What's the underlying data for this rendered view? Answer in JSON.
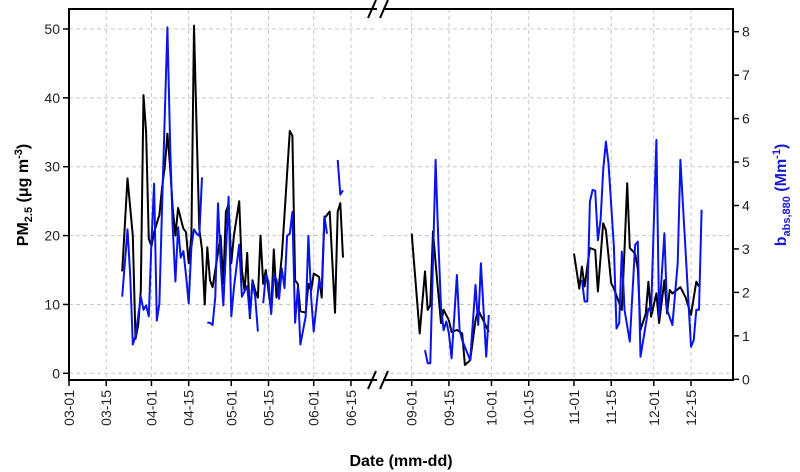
{
  "chart_data": {
    "type": "line",
    "xlabel": "Date (mm-dd)",
    "ylabel_left": {
      "main": "PM",
      "sub": "2.5",
      "unit": " (μg m",
      "sup": "-3",
      "close": ")"
    },
    "ylabel_right": {
      "main": "b",
      "sub": "abs,880",
      "unit": " (Mm",
      "sup": "-1",
      "close": ")"
    },
    "x_axis_break": true,
    "x_segments": [
      [
        "03-01",
        "06-24"
      ],
      [
        "08-21",
        "12-31"
      ]
    ],
    "x_ticks": [
      "03-01",
      "03-15",
      "04-01",
      "04-15",
      "05-01",
      "05-15",
      "06-01",
      "06-15",
      "09-01",
      "09-15",
      "10-01",
      "10-15",
      "11-01",
      "11-15",
      "12-01",
      "12-15"
    ],
    "ylim_left": [
      0,
      50
    ],
    "y_ticks_left": [
      0,
      10,
      20,
      30,
      40,
      50
    ],
    "ylim_right": [
      0,
      8
    ],
    "y_ticks_right": [
      0,
      1,
      2,
      3,
      4,
      5,
      6,
      7,
      8
    ],
    "grid": true,
    "colors": {
      "left_series": "#000000",
      "right_series": "#0a14e6",
      "right_axis_label": "#1a1ad6"
    },
    "series": [
      {
        "axis": "left",
        "color": "#000000",
        "points": [
          [
            "03-21",
            14.8
          ],
          [
            "03-23",
            28.3
          ],
          [
            "03-25",
            20
          ],
          [
            "03-26",
            5
          ],
          [
            "03-27",
            7
          ],
          [
            "03-28",
            12
          ],
          [
            "03-29",
            40.4
          ],
          [
            "03-30",
            35
          ],
          [
            "03-31",
            19.5
          ],
          [
            "04-01",
            18.5
          ],
          [
            "04-02",
            20.5
          ],
          [
            "04-04",
            23
          ],
          [
            "04-05",
            27
          ],
          [
            "04-06",
            30
          ],
          [
            "04-07",
            34.8
          ],
          [
            "04-08",
            30
          ],
          [
            "04-09",
            24
          ],
          [
            "04-10",
            20
          ],
          [
            "04-11",
            24
          ],
          [
            "04-12",
            22.5
          ],
          [
            "04-13",
            21
          ],
          [
            "04-14",
            20.5
          ],
          [
            "04-15",
            16
          ],
          [
            "04-16",
            20
          ],
          [
            "04-17",
            50.5
          ],
          [
            "04-18",
            35
          ],
          [
            "04-19",
            21
          ],
          [
            "04-20",
            18
          ],
          [
            "04-21",
            10
          ],
          [
            "04-22",
            18.3
          ],
          [
            "04-23",
            13.5
          ],
          [
            "04-24",
            12.5
          ],
          [
            "04-25",
            15
          ],
          [
            "04-27",
            20
          ],
          [
            "04-28",
            13
          ],
          [
            "04-29",
            23.5
          ],
          [
            "04-30",
            24.5
          ],
          [
            "05-01",
            16
          ],
          [
            "05-02",
            20
          ],
          [
            "05-04",
            25
          ],
          [
            "05-05",
            15
          ],
          [
            "05-06",
            12
          ],
          [
            "05-07",
            17.5
          ],
          [
            "05-08",
            8
          ],
          [
            "05-09",
            13.5
          ],
          [
            "05-10",
            12
          ],
          [
            "05-11",
            11
          ],
          [
            "05-12",
            20
          ],
          [
            "05-13",
            13
          ],
          [
            "05-14",
            15
          ],
          [
            "05-16",
            9
          ],
          [
            "05-17",
            18
          ],
          [
            "05-18",
            11
          ],
          [
            "05-19",
            13
          ],
          [
            "05-20",
            17
          ],
          [
            "05-21",
            23
          ],
          [
            "05-23",
            35.2
          ],
          [
            "05-24",
            34.5
          ],
          [
            "05-25",
            13.5
          ],
          [
            "05-26",
            13
          ],
          [
            "05-27",
            9
          ],
          [
            "05-29",
            8.8
          ],
          [
            "05-30",
            13
          ],
          [
            "05-31",
            12
          ],
          [
            "06-01",
            14.5
          ],
          [
            "06-03",
            14
          ],
          [
            "06-04",
            11
          ],
          [
            "06-05",
            22.5
          ],
          [
            "06-07",
            23.5
          ],
          [
            "06-09",
            8.8
          ],
          [
            "06-10",
            23.5
          ],
          [
            "06-11",
            24.7
          ],
          [
            "06-12",
            16.8
          ],
          null,
          [
            "09-01",
            20.3
          ],
          [
            "09-04",
            5.8
          ],
          [
            "09-06",
            14.8
          ],
          [
            "09-07",
            9.2
          ],
          [
            "09-08",
            9.9
          ],
          [
            "09-09",
            20.6
          ],
          [
            "09-10",
            16
          ],
          [
            "09-12",
            7.3
          ],
          [
            "09-13",
            9.2
          ],
          [
            "09-15",
            7.7
          ],
          [
            "09-16",
            6
          ],
          [
            "09-18",
            6.3
          ],
          [
            "09-20",
            5.8
          ],
          [
            "09-21",
            1.2
          ],
          [
            "09-23",
            1.9
          ],
          [
            "09-25",
            7.7
          ],
          [
            "09-26",
            9.2
          ],
          [
            "09-29",
            6.8
          ],
          [
            "09-30",
            6
          ],
          null,
          [
            "11-01",
            17.4
          ],
          [
            "11-03",
            12.3
          ],
          [
            "11-04",
            15.5
          ],
          [
            "11-05",
            12.6
          ],
          [
            "11-07",
            18.2
          ],
          [
            "11-09",
            17.9
          ],
          [
            "11-10",
            11.9
          ],
          [
            "11-12",
            21.8
          ],
          [
            "11-13",
            20.8
          ],
          [
            "11-15",
            13.1
          ],
          [
            "11-16",
            12.3
          ],
          [
            "11-19",
            9.2
          ],
          [
            "11-20",
            17.9
          ],
          [
            "11-21",
            27.6
          ],
          [
            "11-22",
            18.2
          ],
          [
            "11-24",
            17.4
          ],
          [
            "11-25",
            15.2
          ],
          [
            "11-26",
            6.3
          ],
          [
            "11-28",
            8.7
          ],
          [
            "11-29",
            13.3
          ],
          [
            "11-30",
            8.2
          ],
          [
            "12-02",
            11.6
          ],
          [
            "12-03",
            7.3
          ],
          [
            "12-05",
            13.5
          ],
          [
            "12-06",
            8.7
          ],
          [
            "12-07",
            12.1
          ],
          [
            "12-08",
            11.6
          ],
          [
            "12-11",
            12.5
          ],
          [
            "12-13",
            11
          ],
          [
            "12-15",
            8.5
          ],
          [
            "12-17",
            13.3
          ],
          [
            "12-18",
            12.6
          ]
        ]
      },
      {
        "axis": "right",
        "color": "#0a14e6",
        "points": [
          [
            "03-21",
            1.9
          ],
          [
            "03-23",
            3.45
          ],
          [
            "03-24",
            2.4
          ],
          [
            "03-25",
            0.8
          ],
          [
            "03-26",
            1.0
          ],
          [
            "03-28",
            1.9
          ],
          [
            "03-29",
            1.6
          ],
          [
            "03-30",
            1.7
          ],
          [
            "03-31",
            1.45
          ],
          [
            "04-01",
            3.2
          ],
          [
            "04-02",
            4.5
          ],
          [
            "04-03",
            1.35
          ],
          [
            "04-04",
            1.75
          ],
          [
            "04-05",
            4.0
          ],
          [
            "04-07",
            8.1
          ],
          [
            "04-08",
            5.45
          ],
          [
            "04-09",
            3.5
          ],
          [
            "04-10",
            2.25
          ],
          [
            "04-11",
            3.5
          ],
          [
            "04-12",
            2.8
          ],
          [
            "04-13",
            2.95
          ],
          [
            "04-14",
            2.4
          ],
          [
            "04-15",
            1.75
          ],
          [
            "04-16",
            3.05
          ],
          [
            "04-17",
            3.45
          ],
          [
            "04-18",
            3.35
          ],
          [
            "04-19",
            3.3
          ],
          [
            "04-20",
            4.65
          ],
          null,
          [
            "04-22",
            1.3
          ],
          [
            "04-23",
            1.3
          ],
          [
            "04-24",
            1.25
          ],
          [
            "04-25",
            1.9
          ],
          [
            "04-26",
            4.05
          ],
          [
            "04-27",
            2.7
          ],
          [
            "04-28",
            1.7
          ],
          [
            "04-30",
            4.2
          ],
          [
            "05-01",
            1.45
          ],
          [
            "05-02",
            2.1
          ],
          [
            "05-04",
            3.1
          ],
          [
            "05-05",
            1.9
          ],
          [
            "05-07",
            2.15
          ],
          [
            "05-08",
            1.45
          ],
          [
            "05-09",
            2.25
          ],
          [
            "05-10",
            1.9
          ],
          [
            "05-11",
            1.1
          ],
          null,
          [
            "05-13",
            1.75
          ],
          [
            "05-14",
            2.4
          ],
          [
            "05-15",
            2.25
          ],
          [
            "05-16",
            1.5
          ],
          [
            "05-17",
            2.4
          ],
          [
            "05-18",
            2.3
          ],
          [
            "05-19",
            1.85
          ],
          [
            "05-20",
            2.55
          ],
          [
            "05-21",
            2.1
          ],
          [
            "05-22",
            3.3
          ],
          [
            "05-23",
            3.35
          ],
          [
            "05-24",
            3.85
          ],
          [
            "05-25",
            1.3
          ],
          [
            "05-26",
            2.1
          ],
          [
            "05-27",
            0.8
          ],
          [
            "05-29",
            1.45
          ],
          [
            "05-30",
            3.3
          ],
          [
            "05-31",
            1.9
          ],
          [
            "06-01",
            1.1
          ],
          [
            "06-03",
            2.25
          ],
          [
            "06-04",
            2.1
          ],
          [
            "06-05",
            3.75
          ],
          [
            "06-06",
            3.35
          ],
          null,
          [
            "06-10",
            5.05
          ],
          [
            "06-11",
            4.25
          ],
          [
            "06-12",
            4.35
          ],
          null,
          [
            "09-06",
            0.67
          ],
          [
            "09-07",
            0.37
          ],
          [
            "09-08",
            0.37
          ],
          [
            "09-10",
            5.05
          ],
          [
            "09-11",
            3.2
          ],
          [
            "09-12",
            1.67
          ],
          [
            "09-13",
            1.13
          ],
          [
            "09-14",
            1.33
          ],
          [
            "09-15",
            1.06
          ],
          [
            "09-16",
            0.48
          ],
          [
            "09-18",
            2.4
          ],
          [
            "09-19",
            1.13
          ],
          [
            "09-20",
            0.9
          ],
          [
            "09-23",
            0.44
          ],
          [
            "09-25",
            2.17
          ],
          [
            "09-26",
            1.25
          ],
          [
            "09-27",
            2.67
          ],
          [
            "09-29",
            0.52
          ],
          [
            "09-30",
            1.48
          ],
          null,
          [
            "11-04",
            2.29
          ],
          [
            "11-05",
            1.79
          ],
          [
            "11-06",
            1.79
          ],
          [
            "11-07",
            4.09
          ],
          [
            "11-08",
            4.36
          ],
          [
            "11-09",
            4.34
          ],
          [
            "11-10",
            3.2
          ],
          [
            "11-11",
            3.67
          ],
          [
            "11-12",
            4.82
          ],
          [
            "11-13",
            5.47
          ],
          [
            "11-14",
            4.97
          ],
          [
            "11-16",
            3.05
          ],
          [
            "11-17",
            1.17
          ],
          [
            "11-18",
            1.29
          ],
          [
            "11-19",
            2.94
          ],
          [
            "11-20",
            1.6
          ],
          [
            "11-22",
            0.87
          ],
          [
            "11-24",
            3.09
          ],
          [
            "11-25",
            3.17
          ],
          [
            "11-26",
            0.52
          ],
          [
            "11-29",
            1.63
          ],
          [
            "11-30",
            1.56
          ],
          [
            "12-02",
            5.51
          ],
          [
            "12-03",
            1.44
          ],
          [
            "12-05",
            3.36
          ],
          [
            "12-06",
            1.6
          ],
          [
            "12-08",
            1.25
          ],
          [
            "12-10",
            2.67
          ],
          [
            "12-11",
            5.05
          ],
          [
            "12-13",
            2.9
          ],
          [
            "12-15",
            0.75
          ],
          [
            "12-16",
            0.9
          ],
          [
            "12-17",
            1.6
          ],
          [
            "12-18",
            1.6
          ],
          [
            "12-19",
            3.9
          ]
        ]
      }
    ]
  }
}
